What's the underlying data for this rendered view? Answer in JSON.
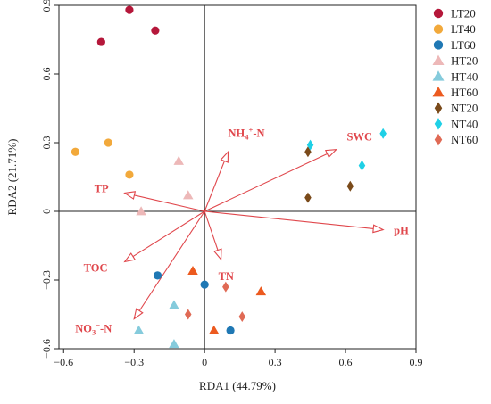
{
  "chart_data": {
    "type": "scatter",
    "xlabel": "RDA1 (44.79%)",
    "ylabel": "RDA2 (21.71%)",
    "xlim": [
      -0.62,
      0.9
    ],
    "ylim": [
      -0.6,
      0.9
    ],
    "xticks": [
      -0.6,
      -0.3,
      0,
      0.3,
      0.6,
      0.9
    ],
    "yticks": [
      -0.6,
      -0.3,
      0,
      0.3,
      0.6,
      0.9
    ],
    "xtick_labels": [
      "−0.6",
      "−0.3",
      "0",
      "0.3",
      "0.6",
      "0.9"
    ],
    "ytick_labels": [
      "−0.6",
      "−0.3",
      "0",
      "0.3",
      "0.6",
      "0.9"
    ],
    "legend_position": "right",
    "series": [
      {
        "name": "LT20",
        "marker": "circle",
        "color": "#b5173a",
        "points": [
          [
            -0.32,
            0.88
          ],
          [
            -0.44,
            0.74
          ],
          [
            -0.21,
            0.79
          ]
        ]
      },
      {
        "name": "LT40",
        "marker": "circle",
        "color": "#f2a93b",
        "points": [
          [
            -0.55,
            0.26
          ],
          [
            -0.41,
            0.3
          ],
          [
            -0.32,
            0.16
          ]
        ]
      },
      {
        "name": "LT60",
        "marker": "circle",
        "color": "#1f78b4",
        "points": [
          [
            -0.2,
            -0.28
          ],
          [
            0.0,
            -0.32
          ],
          [
            0.11,
            -0.52
          ]
        ]
      },
      {
        "name": "HT20",
        "marker": "triangle",
        "color": "#edb8b8",
        "points": [
          [
            -0.11,
            0.22
          ],
          [
            -0.07,
            0.07
          ],
          [
            -0.27,
            0.0
          ]
        ]
      },
      {
        "name": "HT40",
        "marker": "triangle",
        "color": "#85cbdc",
        "points": [
          [
            -0.28,
            -0.52
          ],
          [
            -0.13,
            -0.41
          ],
          [
            -0.13,
            -0.58
          ]
        ]
      },
      {
        "name": "HT60",
        "marker": "triangle",
        "color": "#ec5a1f",
        "points": [
          [
            -0.05,
            -0.26
          ],
          [
            0.04,
            -0.52
          ],
          [
            0.24,
            -0.35
          ]
        ]
      },
      {
        "name": "NT20",
        "marker": "diamond",
        "color": "#7a4a1a",
        "points": [
          [
            0.44,
            0.26
          ],
          [
            0.44,
            0.06
          ],
          [
            0.62,
            0.11
          ]
        ]
      },
      {
        "name": "NT40",
        "marker": "diamond",
        "color": "#1fd0e6",
        "points": [
          [
            0.45,
            0.29
          ],
          [
            0.67,
            0.2
          ],
          [
            0.76,
            0.34
          ]
        ]
      },
      {
        "name": "NT60",
        "marker": "diamond",
        "color": "#e06a55",
        "points": [
          [
            -0.07,
            -0.45
          ],
          [
            0.09,
            -0.33
          ],
          [
            0.16,
            -0.46
          ]
        ]
      }
    ],
    "vectors": [
      {
        "name": "pH",
        "label_parts": [
          {
            "t": "pH"
          }
        ],
        "end": [
          0.76,
          -0.08
        ]
      },
      {
        "name": "SWC",
        "label_parts": [
          {
            "t": "SWC"
          }
        ],
        "end": [
          0.56,
          0.27
        ]
      },
      {
        "name": "NH4+-N",
        "label_parts": [
          {
            "t": "NH"
          },
          {
            "t": "4",
            "sub": true
          },
          {
            "t": "+",
            "sup": true
          },
          {
            "t": "-N"
          }
        ],
        "end": [
          0.1,
          0.26
        ]
      },
      {
        "name": "TP",
        "label_parts": [
          {
            "t": "TP"
          }
        ],
        "end": [
          -0.34,
          0.08
        ]
      },
      {
        "name": "TOC",
        "label_parts": [
          {
            "t": "TOC"
          }
        ],
        "end": [
          -0.34,
          -0.22
        ]
      },
      {
        "name": "TN",
        "label_parts": [
          {
            "t": "TN"
          }
        ],
        "end": [
          0.07,
          -0.21
        ]
      },
      {
        "name": "NO3--N",
        "label_parts": [
          {
            "t": "NO"
          },
          {
            "t": "3",
            "sub": true
          },
          {
            "t": "−",
            "sup": true
          },
          {
            "t": "-N"
          }
        ],
        "end": [
          -0.3,
          -0.47
        ]
      }
    ]
  }
}
